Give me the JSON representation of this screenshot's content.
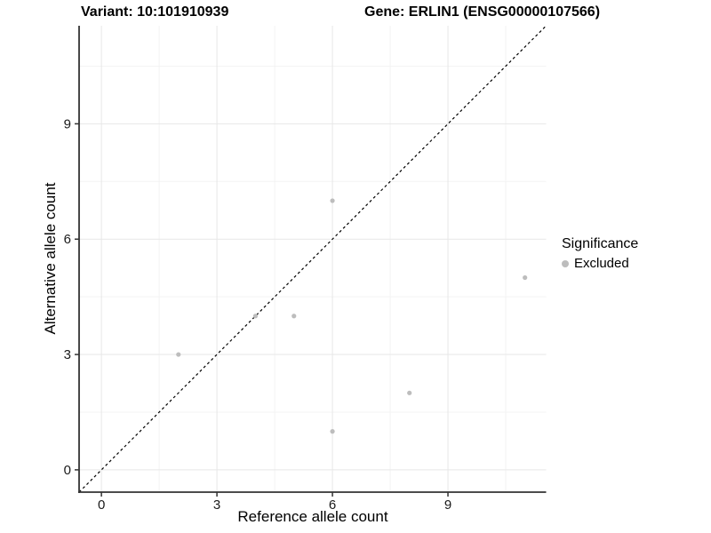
{
  "figure": {
    "title_left": "Variant: 10:101910939",
    "title_right": "Gene: ERLIN1 (ENSG00000107566)"
  },
  "chart_data": {
    "type": "scatter",
    "title": "Variant: 10:101910939 | Gene: ERLIN1 (ENSG00000107566)",
    "xlabel": "Reference allele count",
    "ylabel": "Alternative allele count",
    "x_ticks": [
      0,
      3,
      6,
      9
    ],
    "y_ticks": [
      0,
      3,
      6,
      9
    ],
    "x_minor_ticks": [
      1.5,
      4.5,
      7.5,
      10.5
    ],
    "y_minor_ticks": [
      1.5,
      4.5,
      7.5,
      10.5
    ],
    "xlim": [
      -0.58,
      11.55
    ],
    "ylim": [
      -0.58,
      11.55
    ],
    "grid": true,
    "legend_position": "right",
    "series": [
      {
        "name": "Excluded",
        "color": "#bdbdbd",
        "points": [
          {
            "x": 2,
            "y": 3
          },
          {
            "x": 4,
            "y": 4
          },
          {
            "x": 5,
            "y": 4
          },
          {
            "x": 6,
            "y": 1
          },
          {
            "x": 6,
            "y": 7
          },
          {
            "x": 8,
            "y": 2
          },
          {
            "x": 11,
            "y": 5
          }
        ]
      }
    ],
    "reference_line": {
      "type": "identity",
      "style": "dashed",
      "color": "#000000"
    },
    "legend": {
      "title": "Significance",
      "items": [
        {
          "label": "Excluded",
          "color": "#bdbdbd"
        }
      ]
    }
  },
  "colors": {
    "background": "#ffffff",
    "axis_line": "#333333",
    "grid_major": "#e7e7e7",
    "grid_minor": "#f3f3f3",
    "tick_label": "#1a1a1a",
    "identity_line": "#000000"
  }
}
